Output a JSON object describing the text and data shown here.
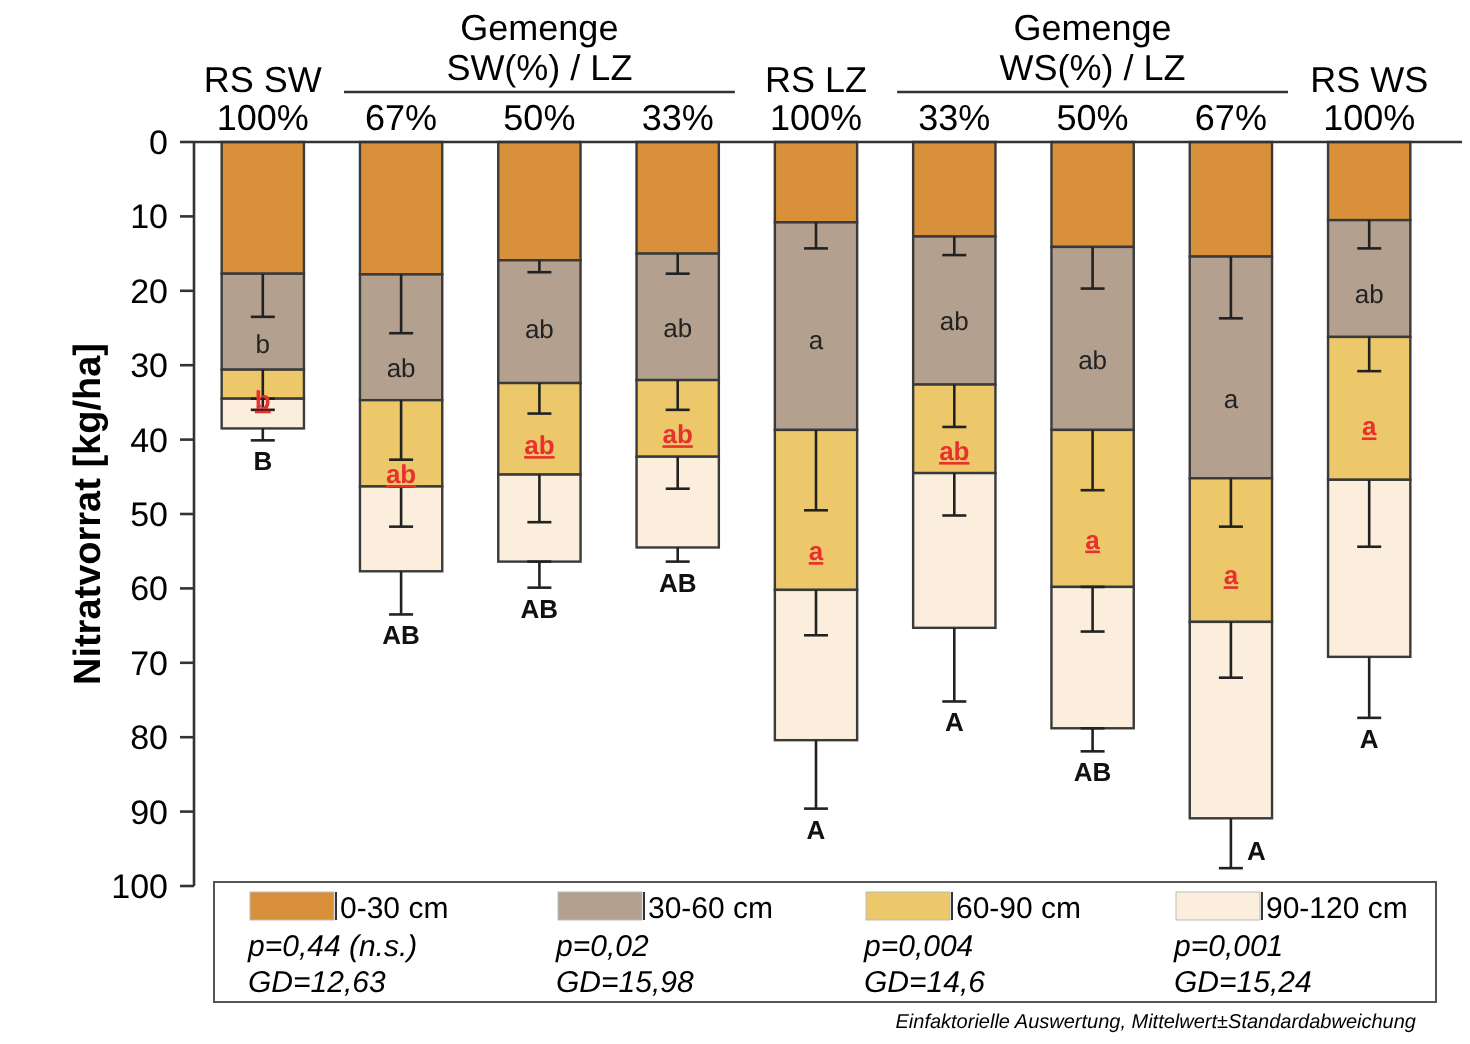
{
  "chart_data": {
    "type": "bar",
    "stacked": true,
    "ylabel": "Nitratvorrat [kg/ha]",
    "categories": [
      "RS SW\n100%",
      "67%",
      "50%",
      "33%",
      "RS LZ\n100%",
      "33%",
      "50%",
      "67%",
      "RS WS\n100%"
    ],
    "ylim": [
      100,
      0
    ],
    "yticks": [
      0,
      10,
      20,
      30,
      40,
      50,
      60,
      70,
      80,
      90,
      100
    ],
    "legend": "bottom",
    "series": [
      {
        "name": "0-30 cm",
        "color": "#d9903a",
        "values": [
          17.7,
          17.8,
          15.9,
          15.0,
          10.8,
          12.7,
          14.1,
          15.4,
          10.5
        ],
        "errors": [
          [
            17.7,
            23.5
          ],
          [
            17.8,
            25.7
          ],
          [
            15.9,
            17.5
          ],
          [
            15.0,
            17.7
          ],
          [
            10.8,
            14.3
          ],
          [
            12.7,
            15.2
          ],
          [
            14.1,
            19.7
          ],
          [
            15.4,
            23.7
          ],
          [
            10.5,
            14.3
          ]
        ]
      },
      {
        "name": "30-60 cm",
        "color": "#b3a08e",
        "values": [
          12.9,
          16.9,
          16.5,
          17.0,
          27.9,
          19.9,
          24.6,
          29.8,
          15.7
        ],
        "errors": [
          [
            30.6,
            34.5
          ],
          [
            34.7,
            42.7
          ],
          [
            32.4,
            36.5
          ],
          [
            32.0,
            36.0
          ],
          [
            38.7,
            49.5
          ],
          [
            32.6,
            38.3
          ],
          [
            38.7,
            46.8
          ],
          [
            45.2,
            51.7
          ],
          [
            26.2,
            30.8
          ]
        ],
        "value_labels": [
          "b",
          "ab",
          "ab",
          "ab",
          "a",
          "ab",
          "ab",
          "a",
          "ab"
        ]
      },
      {
        "name": "60-90 cm",
        "color": "#ecc86a",
        "values": [
          3.9,
          11.6,
          12.3,
          10.3,
          21.5,
          11.9,
          21.1,
          19.3,
          19.2
        ],
        "errors": [
          [
            34.5,
            36.0
          ],
          [
            46.3,
            51.7
          ],
          [
            44.7,
            51.1
          ],
          [
            42.3,
            46.6
          ],
          [
            60.2,
            66.3
          ],
          [
            44.5,
            50.2
          ],
          [
            59.8,
            65.8
          ],
          [
            64.5,
            72.0
          ],
          [
            45.4,
            54.4
          ]
        ],
        "value_labels": [
          "b",
          "ab",
          "ab",
          "ab",
          "a",
          "ab",
          "a",
          "a",
          "a"
        ]
      },
      {
        "name": "90-120 cm",
        "color": "#fbeedd",
        "values": [
          4.0,
          11.4,
          11.7,
          12.2,
          20.2,
          20.8,
          19.0,
          26.4,
          23.8
        ],
        "errors": [
          [
            38.5,
            40.1
          ],
          [
            57.7,
            63.5
          ],
          [
            56.4,
            59.9
          ],
          [
            54.5,
            56.4
          ],
          [
            80.4,
            89.6
          ],
          [
            65.3,
            75.2
          ],
          [
            78.8,
            81.9
          ],
          [
            90.9,
            97.6
          ],
          [
            69.2,
            77.4
          ]
        ]
      }
    ],
    "totals": [
      "B",
      "AB",
      "AB",
      "AB",
      "A",
      "A",
      "AB",
      "A",
      "A"
    ],
    "annotations": [
      "Gemenge\nSW(%) / LZ",
      "Gemenge\nWS(%) / LZ",
      "p=0,44 (n.s.)",
      "GD=12,63",
      "p=0,02",
      "GD=15,98",
      "p=0,004",
      "GD=14,6",
      "p=0,001",
      "GD=15,24",
      "Einfaktorielle Auswertung, Mittelwert±Standardabweichung"
    ]
  }
}
